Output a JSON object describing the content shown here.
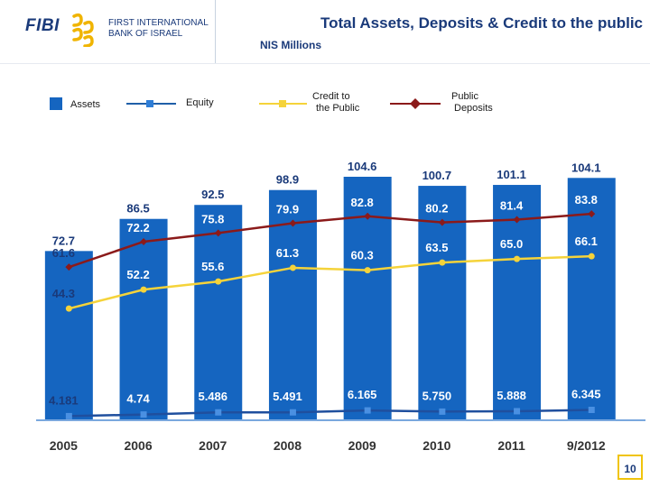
{
  "header": {
    "brand_short": "FIBI",
    "brand_line1": "FIRST INTERNATIONAL",
    "brand_line2": "BANK OF ISRAEL",
    "title": "Total Assets, Deposits & Credit  to the public",
    "subtitle": "NIS Millions"
  },
  "legend": {
    "assets": "Assets",
    "equity": "Equity",
    "credit_line1": "Credit to",
    "credit_line2": "the Public",
    "deposits_line1": "Public",
    "deposits_line2": "Deposits"
  },
  "colors": {
    "assets": "#1565c0",
    "equity": "#1f5fa8",
    "credit": "#f5d33a",
    "deposits": "#8b1a1a",
    "text": "#1a3a7a"
  },
  "chart_data": {
    "type": "bar",
    "title": "Total Assets, Deposits & Credit  to the public",
    "ylabel": "NIS Millions",
    "categories": [
      "2005",
      "2006",
      "2007",
      "2008",
      "2009",
      "2010",
      "2011",
      "9/2012"
    ],
    "series": [
      {
        "name": "Assets",
        "kind": "bar",
        "values": [
          72.7,
          86.5,
          92.5,
          98.9,
          104.6,
          100.7,
          101.1,
          104.1
        ],
        "labels": [
          "72.7",
          "86.5",
          "92.5",
          "98.9",
          "104.6",
          "100.7",
          "101.1",
          "104.1"
        ]
      },
      {
        "name": "Public Deposits",
        "kind": "line",
        "values": [
          61.6,
          72.2,
          75.8,
          79.9,
          82.8,
          80.2,
          81.4,
          83.8
        ],
        "labels": [
          "61.6",
          "72.2",
          "75.8",
          "79.9",
          "82.8",
          "80.2",
          "81.4",
          "83.8"
        ]
      },
      {
        "name": "Credit to the Public",
        "kind": "line",
        "values": [
          44.3,
          52.2,
          55.6,
          61.3,
          60.3,
          63.5,
          65.0,
          66.1
        ],
        "labels": [
          "44.3",
          "52.2",
          "55.6",
          "61.3",
          "60.3",
          "63.5",
          "65.0",
          "66.1"
        ]
      },
      {
        "name": "Equity",
        "kind": "line",
        "values": [
          4.181,
          4.74,
          5.486,
          5.491,
          6.165,
          5.75,
          5.888,
          6.345
        ],
        "labels": [
          "4.181",
          "4.74",
          "5.486",
          "5.491",
          "6.165",
          "5.750",
          "5.888",
          "6.345"
        ]
      }
    ]
  },
  "page_number": "10"
}
